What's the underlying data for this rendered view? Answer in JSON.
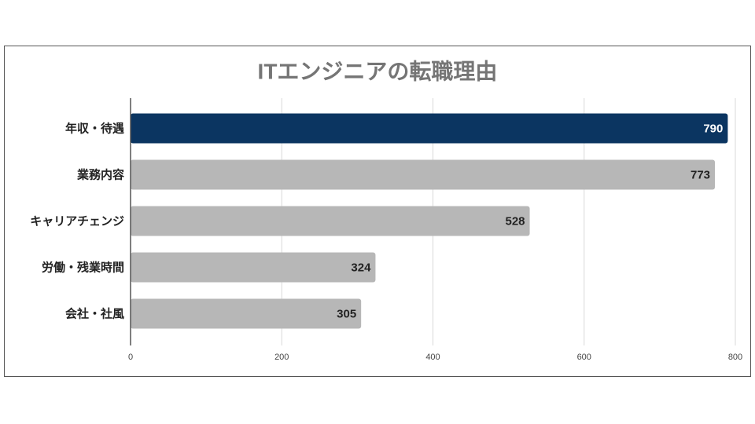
{
  "chart_data": {
    "type": "bar",
    "orientation": "horizontal",
    "title": "ITエンジニアの転職理由",
    "categories": [
      "年収・待遇",
      "業務内容",
      "キャリアチェンジ",
      "労働・残業時間",
      "会社・社風"
    ],
    "values": [
      790,
      773,
      528,
      324,
      305
    ],
    "colors": [
      "#0b3561",
      "#b7b7b7",
      "#b7b7b7",
      "#b7b7b7",
      "#b7b7b7"
    ],
    "xlim": [
      0,
      800
    ],
    "xticks": [
      0,
      200,
      400,
      600,
      800
    ],
    "grid": true
  }
}
